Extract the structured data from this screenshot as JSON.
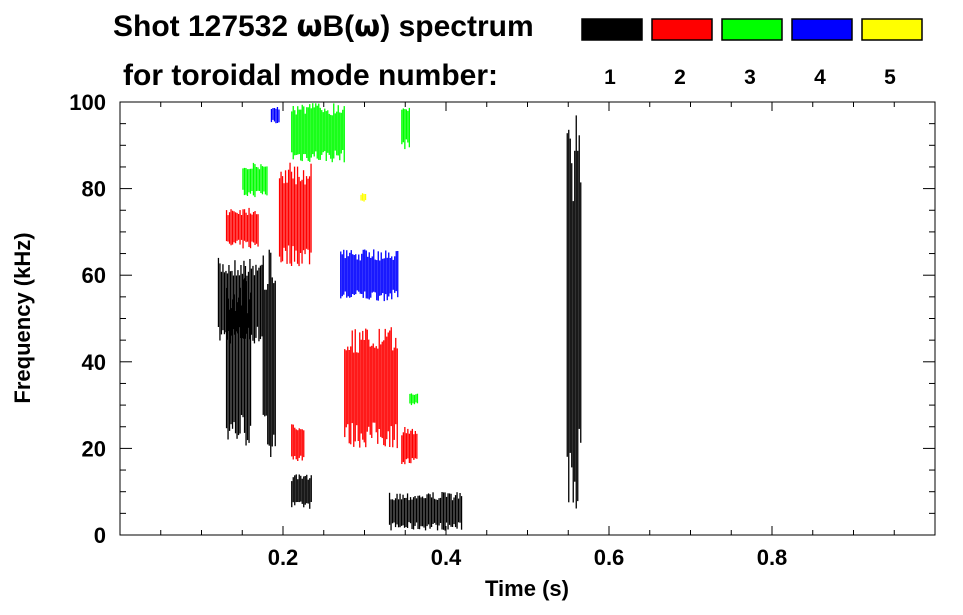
{
  "chart_data": {
    "type": "heatmap",
    "title_line1_prefix": "Shot 127532 ",
    "title_line1_omega1": "ω",
    "title_line1_b": "B(",
    "title_line1_omega2": "ω",
    "title_line1_suffix": ") spectrum",
    "title_line2": "for toroidal mode number:",
    "xlabel": "Time (s)",
    "ylabel": "Frequency (kHz)",
    "xlim": [
      0.0,
      1.0
    ],
    "ylim": [
      0,
      100
    ],
    "x_tick_values": [
      0.2,
      0.4,
      0.6,
      0.8
    ],
    "x_tick_labels": [
      "0.2",
      "0.4",
      "0.6",
      "0.8"
    ],
    "y_tick_values": [
      0,
      20,
      40,
      60,
      80,
      100
    ],
    "y_tick_labels": [
      "0",
      "20",
      "40",
      "60",
      "80",
      "100"
    ],
    "legend": [
      {
        "label": "1",
        "color": "#000000"
      },
      {
        "label": "2",
        "color": "#ff0000"
      },
      {
        "label": "3",
        "color": "#00ff00"
      },
      {
        "label": "4",
        "color": "#0000ff"
      },
      {
        "label": "5",
        "color": "#ffff00"
      }
    ],
    "series": [
      {
        "name": "n=1",
        "color": "#000000",
        "regions": [
          {
            "t": [
              0.12,
              0.175
            ],
            "f": [
              44,
              64
            ]
          },
          {
            "t": [
              0.13,
              0.16
            ],
            "f": [
              20,
              60
            ]
          },
          {
            "t": [
              0.175,
              0.19
            ],
            "f": [
              18,
              66
            ]
          },
          {
            "t": [
              0.21,
              0.235
            ],
            "f": [
              6,
              14
            ]
          },
          {
            "t": [
              0.33,
              0.42
            ],
            "f": [
              1,
              10
            ]
          },
          {
            "t": [
              0.548,
              0.565
            ],
            "f": [
              6,
              97
            ]
          }
        ]
      },
      {
        "name": "n=2",
        "color": "#ff0000",
        "regions": [
          {
            "t": [
              0.13,
              0.17
            ],
            "f": [
              66,
              76
            ]
          },
          {
            "t": [
              0.195,
              0.235
            ],
            "f": [
              62,
              86
            ]
          },
          {
            "t": [
              0.21,
              0.225
            ],
            "f": [
              17,
              26
            ]
          },
          {
            "t": [
              0.275,
              0.34
            ],
            "f": [
              20,
              48
            ]
          },
          {
            "t": [
              0.345,
              0.365
            ],
            "f": [
              16,
              25
            ]
          }
        ]
      },
      {
        "name": "n=3",
        "color": "#00ff00",
        "regions": [
          {
            "t": [
              0.15,
              0.18
            ],
            "f": [
              78,
              86
            ]
          },
          {
            "t": [
              0.21,
              0.275
            ],
            "f": [
              86,
              100
            ]
          },
          {
            "t": [
              0.345,
              0.355
            ],
            "f": [
              89,
              100
            ]
          },
          {
            "t": [
              0.355,
              0.365
            ],
            "f": [
              30,
              33
            ]
          }
        ]
      },
      {
        "name": "n=4",
        "color": "#0000ff",
        "regions": [
          {
            "t": [
              0.27,
              0.34
            ],
            "f": [
              54,
              66
            ]
          },
          {
            "t": [
              0.185,
              0.195
            ],
            "f": [
              95,
              99
            ]
          }
        ]
      },
      {
        "name": "n=5",
        "color": "#ffff00",
        "regions": [
          {
            "t": [
              0.295,
              0.302
            ],
            "f": [
              77,
              79
            ]
          }
        ]
      }
    ]
  }
}
